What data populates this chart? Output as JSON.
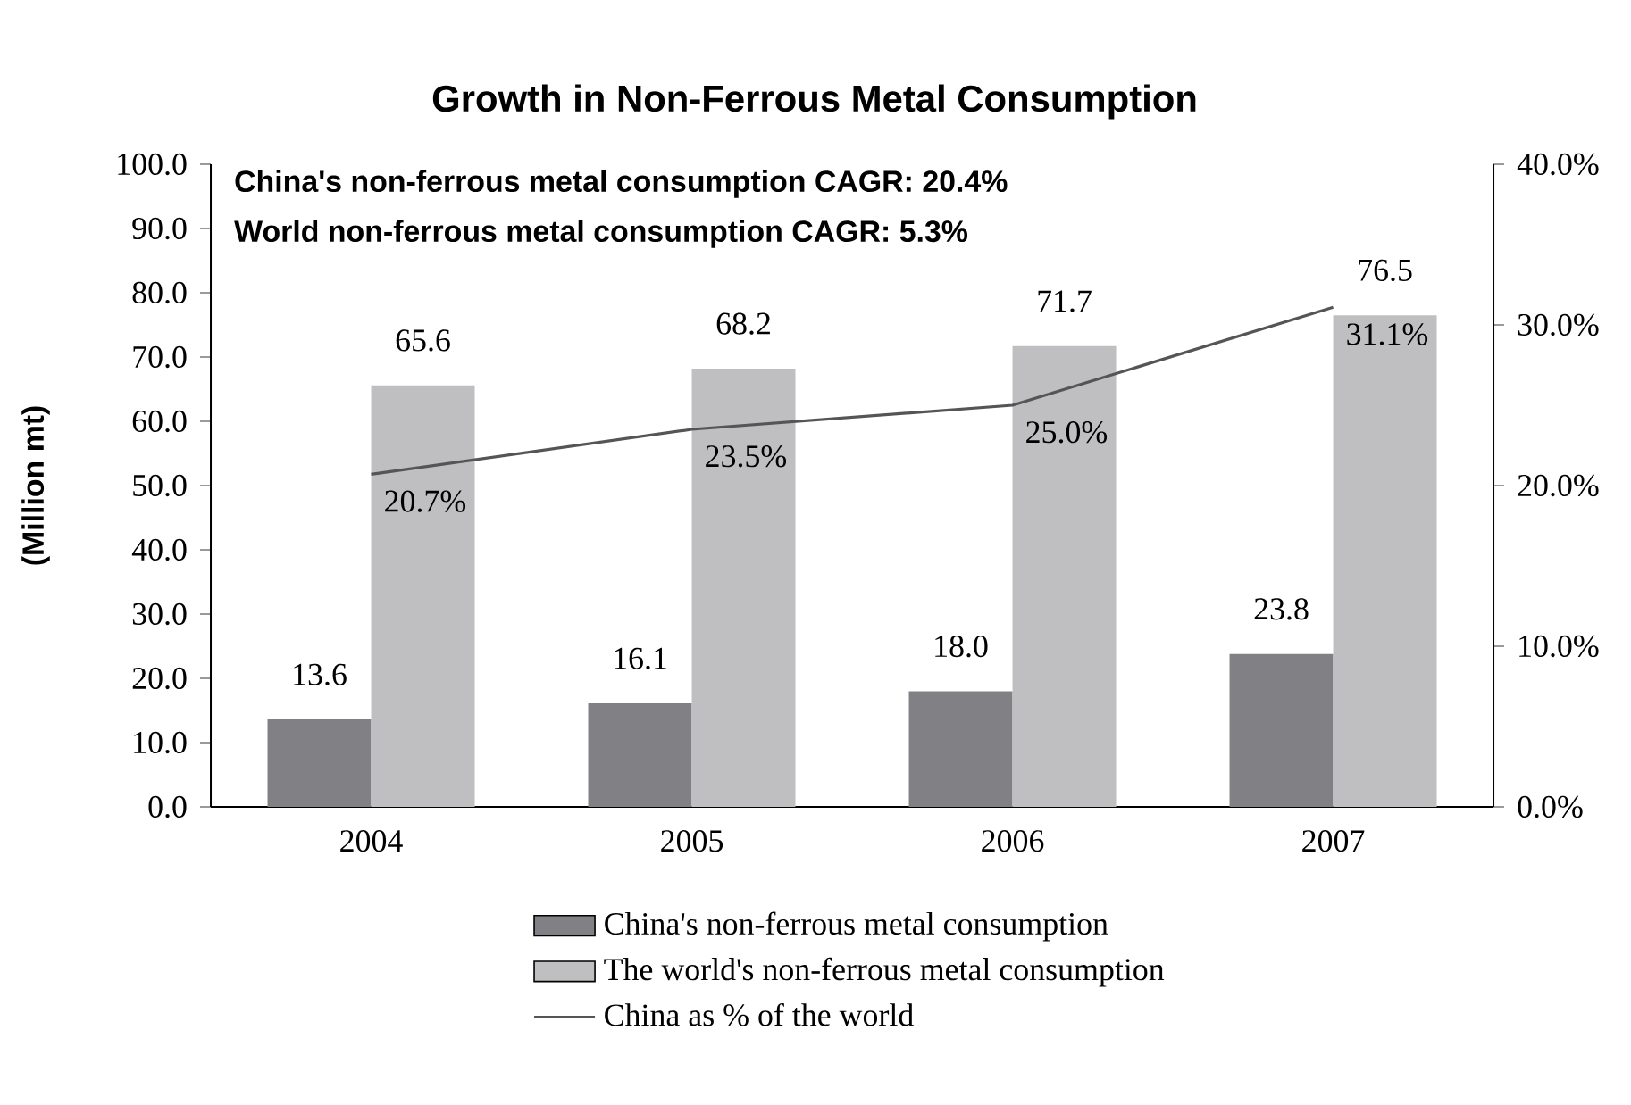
{
  "chart_data": {
    "type": "bar",
    "title": "Growth in Non-Ferrous Metal Consumption",
    "categories": [
      "2004",
      "2005",
      "2006",
      "2007"
    ],
    "series": [
      {
        "name": "China's non-ferrous metal consumption",
        "color": "#818084",
        "values": [
          13.6,
          16.1,
          18.0,
          23.8
        ],
        "value_labels": [
          "13.6",
          "16.1",
          "18.0",
          "23.8"
        ]
      },
      {
        "name": "The world's non-ferrous metal consumption",
        "color": "#bfbfc1",
        "values": [
          65.6,
          68.2,
          71.7,
          76.5
        ],
        "value_labels": [
          "65.6",
          "68.2",
          "71.7",
          "76.5"
        ]
      },
      {
        "name": "China as % of the world",
        "type": "line",
        "axis": "y2",
        "color": "#555555",
        "values": [
          20.7,
          23.5,
          25.0,
          31.1
        ],
        "value_labels": [
          "20.7%",
          "23.5%",
          "25.0%",
          "31.1%"
        ]
      }
    ],
    "ylabel": "(Million mt)",
    "ylim": [
      0,
      100
    ],
    "yticks": [
      {
        "value": 0,
        "label": "0.0"
      },
      {
        "value": 10,
        "label": "10.0"
      },
      {
        "value": 20,
        "label": "20.0"
      },
      {
        "value": 30,
        "label": "30.0"
      },
      {
        "value": 40,
        "label": "40.0"
      },
      {
        "value": 50,
        "label": "50.0"
      },
      {
        "value": 60,
        "label": "60.0"
      },
      {
        "value": 70,
        "label": "70.0"
      },
      {
        "value": 80,
        "label": "80.0"
      },
      {
        "value": 90,
        "label": "90.0"
      },
      {
        "value": 100,
        "label": "100.0"
      }
    ],
    "y2lim": [
      0,
      40
    ],
    "y2ticks": [
      {
        "value": 0,
        "label": "0.0%"
      },
      {
        "value": 10,
        "label": "10.0%"
      },
      {
        "value": 20,
        "label": "20.0%"
      },
      {
        "value": 30,
        "label": "30.0%"
      },
      {
        "value": 40,
        "label": "40.0%"
      }
    ],
    "annotations": [
      "China's non-ferrous metal consumption CAGR: 20.4%",
      "World non-ferrous metal consumption CAGR: 5.3%"
    ],
    "legend": "bottom",
    "grid": false,
    "marker": "none"
  }
}
